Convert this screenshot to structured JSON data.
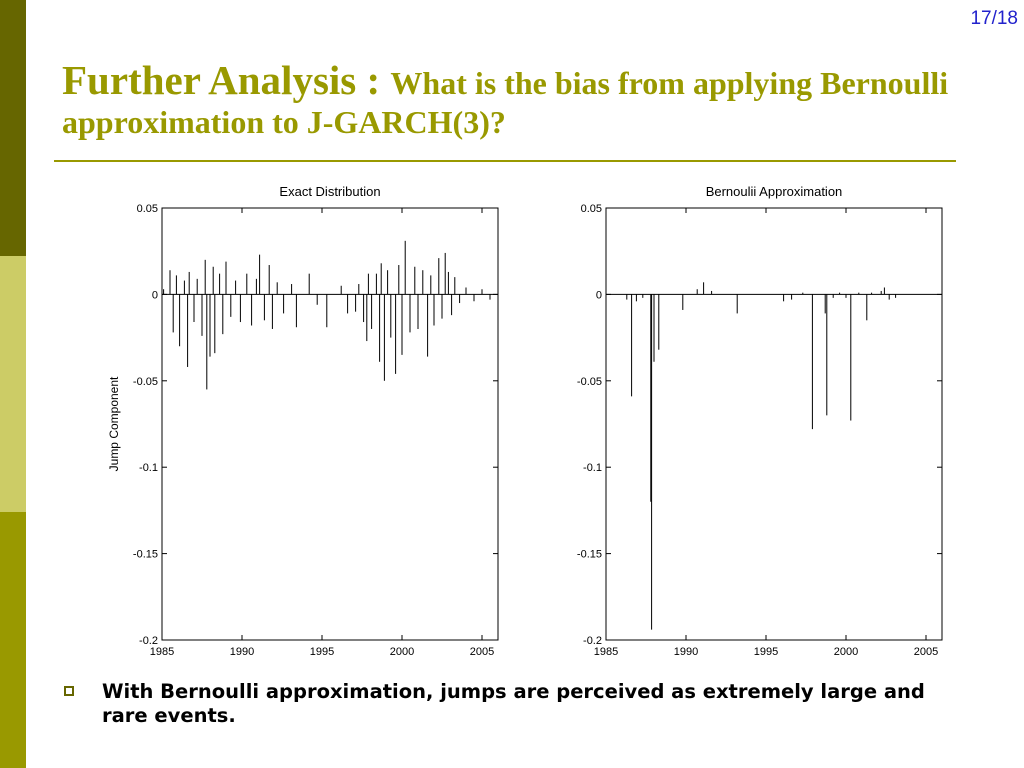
{
  "theme": {
    "accent": "#999900",
    "bar_dark": "#666600",
    "bar_light": "#cccc66",
    "bar_mid": "#999900",
    "slide_number_color": "#2222cc"
  },
  "slide": {
    "number": "17/18"
  },
  "title": {
    "main": "Further Analysis : ",
    "sub": "What is the bias from applying Bernoulli approximation to J-GARCH(3)?"
  },
  "bullet": {
    "text": "With Bernoulli approximation, jumps are perceived as extremely large and rare events."
  },
  "chart_data": [
    {
      "type": "line",
      "title": "Exact Distribution",
      "ylabel": "Jump Component",
      "xlabel": "",
      "xlim": [
        1985,
        2006
      ],
      "ylim": [
        -0.2,
        0.05
      ],
      "xticks": [
        1985,
        1990,
        1995,
        2000,
        2005
      ],
      "yticks": [
        0.05,
        0,
        -0.05,
        -0.1,
        -0.15,
        -0.2
      ],
      "ytick_labels": [
        "0.05",
        "0",
        "-0.05",
        "-0.1",
        "-0.15",
        "-0.2"
      ],
      "grid": false,
      "spikes": [
        {
          "x": 1985.1,
          "y": 0.003
        },
        {
          "x": 1985.5,
          "y": 0.014
        },
        {
          "x": 1985.7,
          "y": -0.022
        },
        {
          "x": 1985.9,
          "y": 0.011
        },
        {
          "x": 1986.1,
          "y": -0.03
        },
        {
          "x": 1986.4,
          "y": 0.008
        },
        {
          "x": 1986.6,
          "y": -0.042
        },
        {
          "x": 1986.7,
          "y": 0.013
        },
        {
          "x": 1987.0,
          "y": -0.016
        },
        {
          "x": 1987.2,
          "y": 0.009
        },
        {
          "x": 1987.5,
          "y": -0.024
        },
        {
          "x": 1987.7,
          "y": 0.02
        },
        {
          "x": 1987.8,
          "y": -0.055
        },
        {
          "x": 1988.0,
          "y": -0.036
        },
        {
          "x": 1988.2,
          "y": 0.016
        },
        {
          "x": 1988.3,
          "y": -0.034
        },
        {
          "x": 1988.6,
          "y": 0.012
        },
        {
          "x": 1988.8,
          "y": -0.023
        },
        {
          "x": 1989.0,
          "y": 0.019
        },
        {
          "x": 1989.3,
          "y": -0.013
        },
        {
          "x": 1989.6,
          "y": 0.008
        },
        {
          "x": 1989.9,
          "y": -0.016
        },
        {
          "x": 1990.3,
          "y": 0.012
        },
        {
          "x": 1990.6,
          "y": -0.018
        },
        {
          "x": 1990.9,
          "y": 0.009
        },
        {
          "x": 1991.1,
          "y": 0.023
        },
        {
          "x": 1991.4,
          "y": -0.015
        },
        {
          "x": 1991.7,
          "y": 0.017
        },
        {
          "x": 1991.9,
          "y": -0.02
        },
        {
          "x": 1992.2,
          "y": 0.007
        },
        {
          "x": 1992.6,
          "y": -0.011
        },
        {
          "x": 1993.1,
          "y": 0.006
        },
        {
          "x": 1993.4,
          "y": -0.019
        },
        {
          "x": 1994.2,
          "y": 0.012
        },
        {
          "x": 1994.7,
          "y": -0.006
        },
        {
          "x": 1995.3,
          "y": -0.019
        },
        {
          "x": 1996.2,
          "y": 0.005
        },
        {
          "x": 1996.6,
          "y": -0.011
        },
        {
          "x": 1997.1,
          "y": -0.01
        },
        {
          "x": 1997.3,
          "y": 0.006
        },
        {
          "x": 1997.6,
          "y": -0.016
        },
        {
          "x": 1997.8,
          "y": -0.027
        },
        {
          "x": 1997.9,
          "y": 0.012
        },
        {
          "x": 1998.1,
          "y": -0.02
        },
        {
          "x": 1998.4,
          "y": 0.012
        },
        {
          "x": 1998.6,
          "y": -0.039
        },
        {
          "x": 1998.7,
          "y": 0.018
        },
        {
          "x": 1998.9,
          "y": -0.05
        },
        {
          "x": 1999.1,
          "y": 0.014
        },
        {
          "x": 1999.3,
          "y": -0.025
        },
        {
          "x": 1999.6,
          "y": -0.046
        },
        {
          "x": 1999.8,
          "y": 0.017
        },
        {
          "x": 2000.0,
          "y": -0.035
        },
        {
          "x": 2000.2,
          "y": 0.031
        },
        {
          "x": 2000.5,
          "y": -0.022
        },
        {
          "x": 2000.8,
          "y": 0.016
        },
        {
          "x": 2001.0,
          "y": -0.02
        },
        {
          "x": 2001.3,
          "y": 0.014
        },
        {
          "x": 2001.6,
          "y": -0.036
        },
        {
          "x": 2001.8,
          "y": 0.011
        },
        {
          "x": 2002.0,
          "y": -0.018
        },
        {
          "x": 2002.3,
          "y": 0.021
        },
        {
          "x": 2002.5,
          "y": -0.014
        },
        {
          "x": 2002.7,
          "y": 0.024
        },
        {
          "x": 2002.9,
          "y": 0.013
        },
        {
          "x": 2003.1,
          "y": -0.012
        },
        {
          "x": 2003.3,
          "y": 0.01
        },
        {
          "x": 2003.6,
          "y": -0.005
        },
        {
          "x": 2004.0,
          "y": 0.004
        },
        {
          "x": 2004.5,
          "y": -0.004
        },
        {
          "x": 2005.0,
          "y": 0.003
        },
        {
          "x": 2005.5,
          "y": -0.003
        }
      ]
    },
    {
      "type": "line",
      "title": "Bernoulii Approximation",
      "xlabel": "",
      "ylabel": "",
      "xlim": [
        1985,
        2006
      ],
      "ylim": [
        -0.2,
        0.05
      ],
      "xticks": [
        1985,
        1990,
        1995,
        2000,
        2005
      ],
      "yticks": [
        0.05,
        0,
        -0.05,
        -0.1,
        -0.15,
        -0.2
      ],
      "ytick_labels": [
        "0.05",
        "0",
        "-0.05",
        "-0.1",
        "-0.15",
        "-0.2"
      ],
      "grid": false,
      "spikes": [
        {
          "x": 1986.3,
          "y": -0.003
        },
        {
          "x": 1986.6,
          "y": -0.059
        },
        {
          "x": 1986.9,
          "y": -0.004
        },
        {
          "x": 1987.3,
          "y": -0.002
        },
        {
          "x": 1987.8,
          "y": -0.12
        },
        {
          "x": 1987.85,
          "y": -0.194
        },
        {
          "x": 1988.0,
          "y": -0.039
        },
        {
          "x": 1988.3,
          "y": -0.032
        },
        {
          "x": 1989.8,
          "y": -0.009
        },
        {
          "x": 1990.7,
          "y": 0.003
        },
        {
          "x": 1991.1,
          "y": 0.007
        },
        {
          "x": 1991.6,
          "y": 0.002
        },
        {
          "x": 1993.2,
          "y": -0.011
        },
        {
          "x": 1996.1,
          "y": -0.004
        },
        {
          "x": 1996.6,
          "y": -0.003
        },
        {
          "x": 1997.3,
          "y": 0.001
        },
        {
          "x": 1997.9,
          "y": -0.078
        },
        {
          "x": 1998.7,
          "y": -0.011
        },
        {
          "x": 1998.8,
          "y": -0.07
        },
        {
          "x": 1999.2,
          "y": -0.002
        },
        {
          "x": 1999.6,
          "y": 0.001
        },
        {
          "x": 2000.0,
          "y": -0.002
        },
        {
          "x": 2000.3,
          "y": -0.073
        },
        {
          "x": 2000.8,
          "y": 0.001
        },
        {
          "x": 2001.3,
          "y": -0.015
        },
        {
          "x": 2001.6,
          "y": 0.001
        },
        {
          "x": 2002.2,
          "y": 0.002
        },
        {
          "x": 2002.4,
          "y": 0.004
        },
        {
          "x": 2002.7,
          "y": -0.003
        },
        {
          "x": 2003.1,
          "y": -0.002
        }
      ]
    }
  ]
}
